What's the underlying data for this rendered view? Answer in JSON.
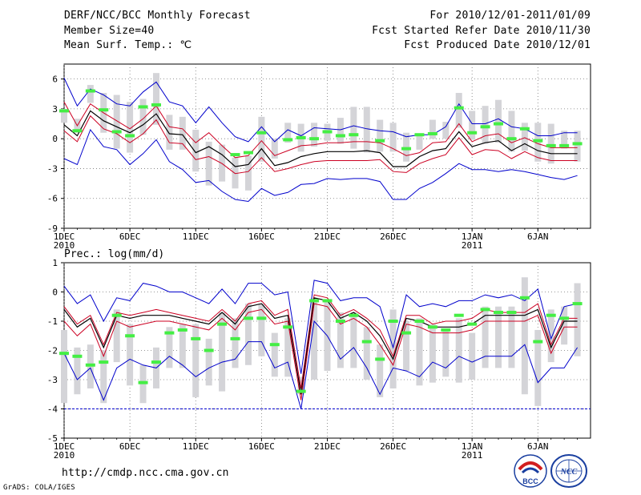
{
  "header": {
    "title": "DERF/NCC/BCC Monthly Forecast",
    "member_size": "Member Size=40",
    "variable": "Mean Surf. Temp.: ℃",
    "for_range": "For 2010/12/01-2011/01/09",
    "fcst_started": "Fcst Started Refer Date 2010/11/30",
    "fcst_produced": "Fcst Produced Date 2010/12/01"
  },
  "footer": {
    "url": "http://cmdp.ncc.cma.gov.cn",
    "credit": "GrADS: COLA/IGES",
    "logo_bcc": "BCC",
    "logo_ncc": "NCC"
  },
  "colors": {
    "max_min": "#0000cc",
    "spread": "#cc0022",
    "mean": "#000000",
    "box": "#d4d4d8",
    "obs": "#44ee44",
    "grid": "#777777",
    "baseline": "#0000cc"
  },
  "chart_data": [
    {
      "type": "line",
      "title": "Mean Surf. Temp.: ℃",
      "x_ticks": [
        {
          "day": 1,
          "label": "1DEC",
          "sub": "2010"
        },
        {
          "day": 6,
          "label": "6DEC",
          "sub": ""
        },
        {
          "day": 11,
          "label": "11DEC",
          "sub": ""
        },
        {
          "day": 16,
          "label": "16DEC",
          "sub": ""
        },
        {
          "day": 21,
          "label": "21DEC",
          "sub": ""
        },
        {
          "day": 26,
          "label": "26DEC",
          "sub": ""
        },
        {
          "day": 32,
          "label": "1JAN",
          "sub": "2011"
        },
        {
          "day": 37,
          "label": "6JAN",
          "sub": ""
        }
      ],
      "xlim": [
        1,
        41
      ],
      "ylim": [
        -9,
        7.5
      ],
      "y_ticks": [
        -9,
        -6,
        -3,
        0,
        3,
        6
      ],
      "days": [
        1,
        2,
        3,
        4,
        5,
        6,
        7,
        8,
        9,
        10,
        11,
        12,
        13,
        14,
        15,
        16,
        17,
        18,
        19,
        20,
        21,
        22,
        23,
        24,
        25,
        26,
        27,
        28,
        29,
        30,
        31,
        32,
        33,
        34,
        35,
        36,
        37,
        38,
        39,
        40
      ],
      "series": [
        {
          "name": "max",
          "values": [
            6.1,
            3.3,
            5.0,
            4.4,
            3.5,
            3.3,
            4.7,
            5.7,
            3.7,
            3.3,
            1.6,
            3.2,
            1.6,
            0.2,
            -0.3,
            1.2,
            -0.3,
            0.9,
            0.3,
            1.1,
            1.0,
            0.9,
            1.3,
            1.0,
            0.8,
            0.7,
            0.2,
            0.4,
            0.4,
            1.2,
            3.5,
            1.5,
            1.5,
            2.0,
            1.2,
            1.0,
            0.3,
            0.3,
            0.6,
            0.6
          ]
        },
        {
          "name": "upper",
          "values": [
            3.7,
            1.3,
            3.5,
            2.6,
            1.8,
            1.0,
            2.0,
            3.3,
            1.2,
            1.0,
            -0.4,
            0.6,
            -0.7,
            -1.9,
            -1.7,
            -0.2,
            -1.7,
            -1.2,
            -0.7,
            -0.6,
            -0.4,
            -0.4,
            -0.3,
            -0.3,
            -0.4,
            -1.0,
            -1.7,
            -1.4,
            -0.4,
            -0.3,
            1.5,
            -0.3,
            0.3,
            0.5,
            -0.4,
            0.1,
            -0.5,
            -0.9,
            -0.9,
            -0.9
          ]
        },
        {
          "name": "mean",
          "values": [
            1.4,
            0.3,
            2.8,
            1.8,
            1.2,
            0.6,
            1.4,
            2.5,
            0.5,
            0.4,
            -1.4,
            -0.8,
            -1.6,
            -2.8,
            -2.6,
            -1.0,
            -2.7,
            -2.4,
            -1.8,
            -1.5,
            -1.3,
            -1.3,
            -1.3,
            -1.2,
            -1.4,
            -2.8,
            -2.8,
            -1.8,
            -1.2,
            -1.0,
            0.7,
            -0.8,
            -0.4,
            -0.2,
            -1.2,
            -0.5,
            -1.2,
            -1.5,
            -1.5,
            -1.5
          ]
        },
        {
          "name": "lower",
          "values": [
            0.8,
            -0.3,
            2.3,
            1.0,
            0.5,
            -0.4,
            0.5,
            1.9,
            -0.4,
            -0.5,
            -2.1,
            -1.8,
            -2.5,
            -3.5,
            -3.3,
            -1.9,
            -3.3,
            -3.0,
            -2.6,
            -2.3,
            -2.2,
            -2.2,
            -2.2,
            -2.2,
            -2.1,
            -3.3,
            -3.4,
            -2.5,
            -2.0,
            -1.6,
            0.1,
            -1.6,
            -1.1,
            -1.2,
            -2.0,
            -1.3,
            -1.9,
            -2.2,
            -2.2,
            -2.2
          ]
        },
        {
          "name": "min",
          "values": [
            -2.0,
            -2.6,
            0.9,
            -0.8,
            -1.1,
            -2.6,
            -1.5,
            -0.1,
            -2.3,
            -3.1,
            -4.4,
            -4.2,
            -5.3,
            -6.1,
            -6.3,
            -5.0,
            -5.7,
            -5.4,
            -4.6,
            -4.5,
            -4.0,
            -4.1,
            -4.0,
            -4.0,
            -4.3,
            -6.1,
            -6.1,
            -5.0,
            -4.4,
            -3.5,
            -2.5,
            -3.1,
            -3.1,
            -3.3,
            -3.1,
            -3.3,
            -3.6,
            -3.9,
            -4.1,
            -3.7
          ]
        }
      ],
      "box_range": {
        "top": [
          3.0,
          2.0,
          5.4,
          4.6,
          4.4,
          3.7,
          4.0,
          6.6,
          2.4,
          2.2,
          0.9,
          -0.3,
          -0.6,
          -1.9,
          -1.7,
          2.2,
          0.0,
          1.6,
          1.5,
          1.6,
          1.5,
          2.1,
          3.2,
          3.2,
          1.9,
          1.6,
          0.6,
          0.5,
          1.9,
          1.7,
          4.6,
          2.8,
          3.3,
          3.9,
          2.8,
          1.6,
          1.6,
          1.5,
          0.8,
          0.8
        ],
        "bottom": [
          1.6,
          0.6,
          3.6,
          0.6,
          -1.0,
          -1.4,
          0.4,
          1.4,
          -1.1,
          -1.1,
          -3.3,
          -4.7,
          -4.3,
          -5.0,
          -5.2,
          -2.3,
          -2.0,
          -0.4,
          -1.3,
          -0.8,
          -0.2,
          -0.5,
          -1.0,
          -1.4,
          -1.3,
          -1.3,
          -2.3,
          -1.1,
          0.0,
          0.0,
          1.1,
          -0.1,
          -0.5,
          -0.4,
          -1.3,
          -1.2,
          -2.3,
          -2.5,
          -1.0,
          -2.3
        ]
      },
      "observed": [
        2.8,
        0.8,
        4.8,
        2.9,
        0.7,
        0.3,
        3.2,
        3.4,
        null,
        null,
        null,
        null,
        null,
        -1.6,
        -1.4,
        0.6,
        null,
        -0.1,
        0.1,
        0.0,
        0.7,
        0.3,
        0.4,
        null,
        -0.2,
        null,
        -1.0,
        0.4,
        0.5,
        null,
        3.1,
        0.6,
        1.2,
        1.5,
        0.0,
        1.0,
        -0.2,
        -0.7,
        -0.7,
        -0.5
      ]
    },
    {
      "type": "line",
      "title": "Prec.: log(mm/d)",
      "x_ticks": [
        {
          "day": 1,
          "label": "1DEC",
          "sub": "2010"
        },
        {
          "day": 6,
          "label": "6DEC",
          "sub": ""
        },
        {
          "day": 11,
          "label": "11DEC",
          "sub": ""
        },
        {
          "day": 16,
          "label": "16DEC",
          "sub": ""
        },
        {
          "day": 21,
          "label": "21DEC",
          "sub": ""
        },
        {
          "day": 26,
          "label": "26DEC",
          "sub": ""
        },
        {
          "day": 32,
          "label": "1JAN",
          "sub": "2011"
        },
        {
          "day": 37,
          "label": "6JAN",
          "sub": ""
        }
      ],
      "xlim": [
        1,
        41
      ],
      "ylim": [
        -5,
        1
      ],
      "y_ticks": [
        -5,
        -4,
        -3,
        -2,
        -1,
        0,
        1
      ],
      "baseline": -4,
      "days": [
        1,
        2,
        3,
        4,
        5,
        6,
        7,
        8,
        9,
        10,
        11,
        12,
        13,
        14,
        15,
        16,
        17,
        18,
        19,
        20,
        21,
        22,
        23,
        24,
        25,
        26,
        27,
        28,
        29,
        30,
        31,
        32,
        33,
        34,
        35,
        36,
        37,
        38,
        39,
        40
      ],
      "series": [
        {
          "name": "max",
          "values": [
            0.2,
            -0.4,
            -0.1,
            -1.0,
            -0.2,
            -0.3,
            0.3,
            0.2,
            0.0,
            0.0,
            -0.2,
            -0.4,
            0.1,
            -0.4,
            0.3,
            0.3,
            -0.1,
            0.0,
            -2.8,
            0.4,
            0.3,
            -0.3,
            -0.2,
            -0.2,
            -0.5,
            -1.9,
            -0.1,
            -0.5,
            -0.4,
            -0.5,
            -0.3,
            -0.3,
            -0.1,
            -0.2,
            -0.1,
            -0.3,
            0.1,
            -1.6,
            -0.5,
            -0.4
          ]
        },
        {
          "name": "upper",
          "values": [
            -0.5,
            -1.1,
            -0.8,
            -1.8,
            -0.7,
            -0.8,
            -0.7,
            -0.6,
            -0.7,
            -0.8,
            -0.9,
            -1.0,
            -0.6,
            -1.0,
            -0.4,
            -0.3,
            -0.8,
            -0.6,
            -3.3,
            -0.1,
            -0.2,
            -0.8,
            -0.6,
            -0.9,
            -1.3,
            -2.2,
            -0.8,
            -0.8,
            -1.1,
            -1.0,
            -1.0,
            -0.9,
            -0.6,
            -0.7,
            -0.7,
            -0.7,
            -0.4,
            -1.8,
            -0.9,
            -0.9
          ]
        },
        {
          "name": "mean",
          "values": [
            -0.6,
            -1.2,
            -0.9,
            -1.9,
            -0.8,
            -0.9,
            -0.8,
            -0.8,
            -0.8,
            -0.9,
            -1.0,
            -1.1,
            -0.7,
            -1.1,
            -0.5,
            -0.4,
            -0.9,
            -0.8,
            -3.5,
            -0.2,
            -0.3,
            -0.9,
            -0.7,
            -1.0,
            -1.5,
            -2.3,
            -0.9,
            -1.0,
            -1.2,
            -1.2,
            -1.2,
            -1.1,
            -0.8,
            -0.8,
            -0.8,
            -0.8,
            -0.6,
            -1.9,
            -1.0,
            -1.0
          ]
        },
        {
          "name": "lower",
          "values": [
            -1.0,
            -1.5,
            -1.1,
            -2.2,
            -1.0,
            -1.2,
            -1.1,
            -1.0,
            -1.0,
            -1.1,
            -1.2,
            -1.3,
            -0.9,
            -1.3,
            -0.7,
            -0.6,
            -1.1,
            -1.0,
            -3.7,
            -0.4,
            -0.5,
            -1.1,
            -0.9,
            -1.2,
            -1.8,
            -2.5,
            -1.1,
            -1.2,
            -1.4,
            -1.4,
            -1.4,
            -1.3,
            -1.0,
            -1.0,
            -1.0,
            -1.0,
            -0.8,
            -2.1,
            -1.2,
            -1.2
          ]
        },
        {
          "name": "min",
          "values": [
            -2.1,
            -3.0,
            -2.6,
            -3.7,
            -2.6,
            -2.3,
            -2.5,
            -2.6,
            -2.2,
            -2.5,
            -2.9,
            -2.6,
            -2.4,
            -2.3,
            -1.7,
            -1.7,
            -2.6,
            -2.4,
            -4.0,
            -1.0,
            -1.5,
            -2.3,
            -1.9,
            -2.6,
            -3.5,
            -2.6,
            -2.7,
            -2.9,
            -2.4,
            -2.6,
            -2.2,
            -2.4,
            -2.2,
            -2.2,
            -2.2,
            -1.8,
            -3.1,
            -2.6,
            -2.6,
            -1.9
          ]
        }
      ],
      "box_range": {
        "top": [
          -1.3,
          -1.9,
          -1.8,
          -2.0,
          -0.6,
          -1.1,
          -2.5,
          -1.9,
          -1.2,
          -1.1,
          -1.1,
          -1.6,
          -0.7,
          -0.9,
          -0.4,
          -0.4,
          -1.4,
          -0.9,
          -2.9,
          -0.2,
          -0.3,
          -0.7,
          -0.7,
          -1.2,
          -1.8,
          -0.6,
          -1.0,
          -0.9,
          -1.1,
          -1.3,
          -0.9,
          -1.4,
          -0.5,
          -0.5,
          -0.5,
          0.5,
          -1.3,
          -0.6,
          -0.5,
          0.3
        ],
        "bottom": [
          -3.8,
          -3.5,
          -3.3,
          -3.8,
          -2.4,
          -3.2,
          -3.8,
          -3.3,
          -2.6,
          -2.6,
          -3.6,
          -3.2,
          -3.4,
          -2.6,
          -2.5,
          -2.2,
          -2.9,
          -2.9,
          -3.5,
          -3.0,
          -2.7,
          -2.6,
          -2.6,
          -3.0,
          -3.6,
          -3.3,
          -2.7,
          -3.2,
          -3.1,
          -2.9,
          -3.1,
          -3.0,
          -2.6,
          -2.6,
          -2.6,
          -3.5,
          -3.9,
          -2.4,
          -1.8,
          -2.2
        ]
      },
      "observed": [
        -2.1,
        -2.2,
        -2.5,
        -2.4,
        -0.8,
        -1.5,
        -3.1,
        -2.4,
        -1.4,
        -1.3,
        -1.6,
        -2.0,
        -1.1,
        -1.6,
        -0.9,
        -0.9,
        -1.8,
        -1.2,
        -3.4,
        -0.3,
        -0.3,
        -1.0,
        -0.8,
        -1.7,
        -2.3,
        -1.0,
        -1.4,
        -1.0,
        -1.2,
        -1.3,
        -0.8,
        -1.1,
        -0.6,
        -0.7,
        -0.7,
        -0.2,
        -1.7,
        -0.8,
        -0.9,
        -0.4
      ]
    }
  ]
}
